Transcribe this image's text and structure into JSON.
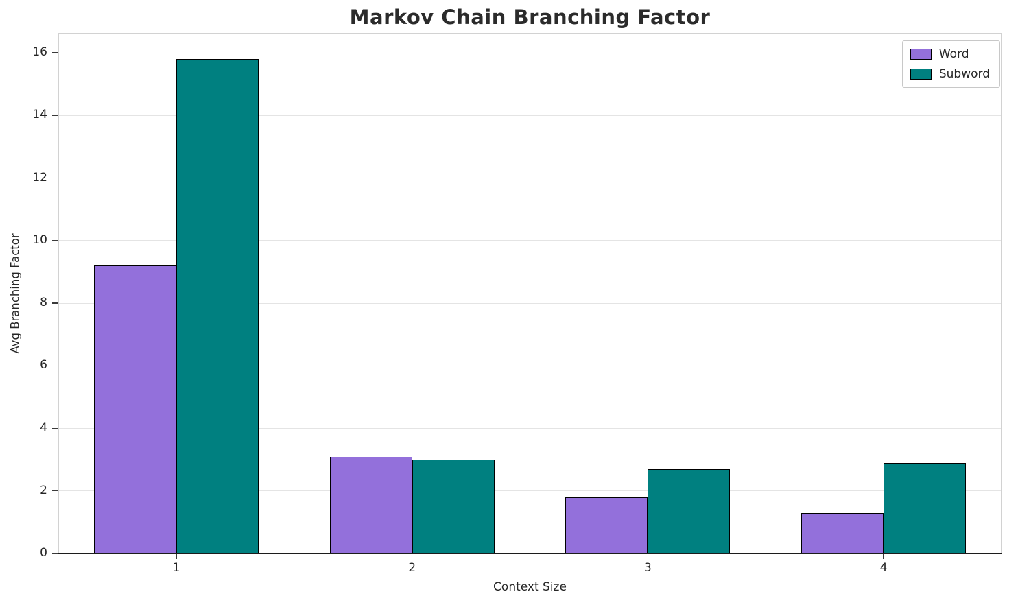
{
  "chart_data": {
    "type": "bar",
    "title": "Markov Chain Branching Factor",
    "xlabel": "Context Size",
    "ylabel": "Avg Branching Factor",
    "categories": [
      "1",
      "2",
      "3",
      "4"
    ],
    "series": [
      {
        "name": "Word",
        "color": "#9370db",
        "values": [
          9.2,
          3.1,
          1.8,
          1.3
        ]
      },
      {
        "name": "Subword",
        "color": "#008080",
        "values": [
          15.8,
          3.0,
          2.7,
          2.9
        ]
      }
    ],
    "ylim": [
      0,
      16
    ],
    "yticks": [
      0,
      2,
      4,
      6,
      8,
      10,
      12,
      14,
      16
    ],
    "grid": true,
    "legend_position": "upper right",
    "bar_edge_color": "#000000"
  }
}
